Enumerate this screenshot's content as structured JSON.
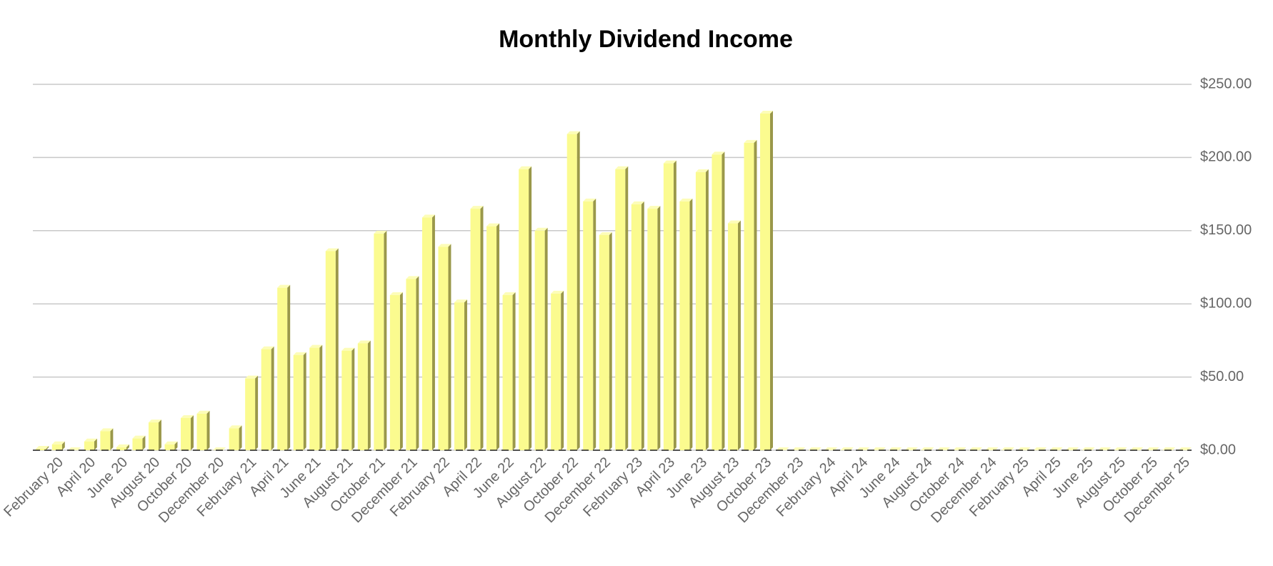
{
  "chart_data": {
    "type": "bar3d",
    "title": "Monthly Dividend Income",
    "categories": [
      null,
      "February 20",
      null,
      "April 20",
      null,
      "June 20",
      null,
      "August 20",
      null,
      "October 20",
      null,
      "December 20",
      null,
      "February 21",
      null,
      "April 21",
      null,
      "June 21",
      null,
      "August 21",
      null,
      "October 21",
      null,
      "December 21",
      null,
      "February 22",
      null,
      "April 22",
      null,
      "June 22",
      null,
      "August 22",
      null,
      "October 22",
      null,
      "December 22",
      null,
      "February 23",
      null,
      "April 23",
      null,
      "June 23",
      null,
      "August 23",
      null,
      "October 23",
      null,
      "December 23",
      null,
      "February 24",
      null,
      "April 24",
      null,
      "June 24",
      null,
      "August 24",
      null,
      "October 24",
      null,
      "December 24",
      null,
      "February 25",
      null,
      "April 25",
      null,
      "June 25",
      null,
      "August 25",
      null,
      "October 25",
      null,
      "December 25"
    ],
    "values": [
      1,
      4,
      0,
      6,
      13,
      2,
      8,
      19,
      4,
      22,
      25,
      0,
      15,
      49,
      69,
      111,
      65,
      70,
      136,
      68,
      73,
      148,
      106,
      117,
      159,
      139,
      101,
      165,
      153,
      106,
      192,
      150,
      107,
      216,
      170,
      147,
      192,
      168,
      165,
      196,
      170,
      190,
      202,
      155,
      210,
      230,
      0,
      0,
      0,
      0,
      0,
      0,
      0,
      0,
      0,
      0,
      0,
      0,
      0,
      0,
      0,
      0,
      0,
      0,
      0,
      0,
      0,
      0,
      0,
      0,
      0,
      0
    ],
    "color": "#fbfb8f",
    "ylim": [
      0,
      250
    ],
    "yticks": [
      {
        "value": 0,
        "label": "$0.00"
      },
      {
        "value": 50,
        "label": "$50.00"
      },
      {
        "value": 100,
        "label": "$100.00"
      },
      {
        "value": 150,
        "label": "$150.00"
      },
      {
        "value": 200,
        "label": "$200.00"
      },
      {
        "value": 250,
        "label": "$250.00"
      }
    ],
    "grid": true
  }
}
